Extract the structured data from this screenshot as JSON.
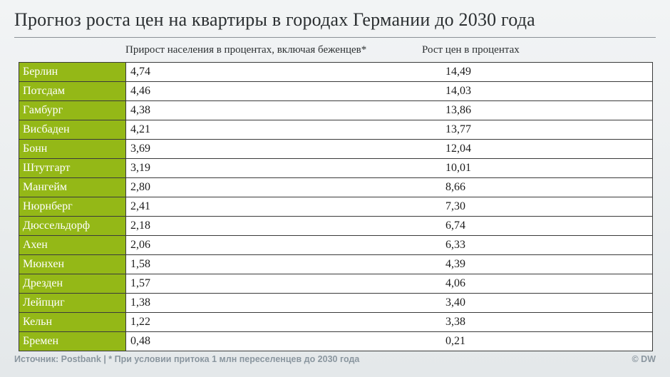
{
  "chart_data": {
    "type": "table",
    "title": "Прогноз роста цен на квартиры в городах Германии до 2030 года",
    "columns": [
      "Прирост населения в процентах, включая беженцев*",
      "Рост цен в процентах"
    ],
    "rows": [
      {
        "city": "Берлин",
        "population_growth": "4,74",
        "price_growth": "14,49"
      },
      {
        "city": "Потсдам",
        "population_growth": "4,46",
        "price_growth": "14,03"
      },
      {
        "city": "Гамбург",
        "population_growth": "4,38",
        "price_growth": "13,86"
      },
      {
        "city": "Висбаден",
        "population_growth": "4,21",
        "price_growth": "13,77"
      },
      {
        "city": "Бонн",
        "population_growth": "3,69",
        "price_growth": "12,04"
      },
      {
        "city": "Штутгарт",
        "population_growth": "3,19",
        "price_growth": "10,01"
      },
      {
        "city": "Мангейм",
        "population_growth": "2,80",
        "price_growth": "8,66"
      },
      {
        "city": "Нюрнберг",
        "population_growth": "2,41",
        "price_growth": "7,30"
      },
      {
        "city": "Дюссельдорф",
        "population_growth": "2,18",
        "price_growth": "6,74"
      },
      {
        "city": "Ахен",
        "population_growth": "2,06",
        "price_growth": "6,33"
      },
      {
        "city": "Мюнхен",
        "population_growth": "1,58",
        "price_growth": "4,39"
      },
      {
        "city": "Дрезден",
        "population_growth": "1,57",
        "price_growth": "4,06"
      },
      {
        "city": "Лейпциг",
        "population_growth": "1,38",
        "price_growth": "3,40"
      },
      {
        "city": "Кельн",
        "population_growth": "1,22",
        "price_growth": "3,38"
      },
      {
        "city": "Бремен",
        "population_growth": "0,48",
        "price_growth": "0,21"
      }
    ],
    "source": "Источник: Postbank | * При условии притока 1 млн переселенцев до 2030 года",
    "copyright": "© DW",
    "colors": {
      "city_cell": "#94b817",
      "value_cell": "#ffffff",
      "text": "#1c1c1c",
      "footer_text": "#8a969f"
    }
  }
}
